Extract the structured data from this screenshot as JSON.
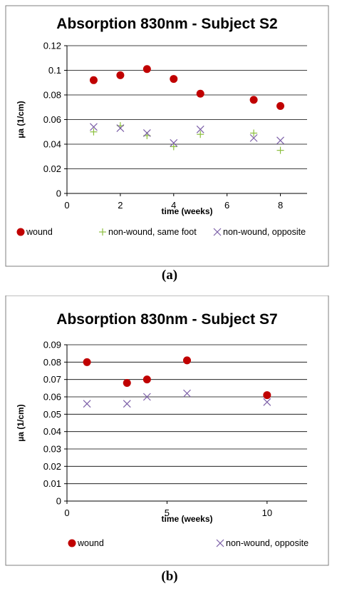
{
  "chart_data": [
    {
      "type": "scatter",
      "title": "Absorption 830nm - Subject S2",
      "xlabel": "time (weeks)",
      "ylabel": "µa (1/cm)",
      "xlim": [
        0,
        9
      ],
      "ylim": [
        0,
        0.12
      ],
      "xticks": [
        "0",
        "2",
        "4",
        "6",
        "8"
      ],
      "yticks": [
        "0",
        "0.02",
        "0.04",
        "0.06",
        "0.08",
        "0.1",
        "0.12"
      ],
      "grid": "horizontal",
      "legend_position": "bottom",
      "caption": "(a)",
      "series": [
        {
          "name": "wound",
          "color": "#c00000",
          "marker": "circle",
          "x": [
            1,
            2,
            3,
            4,
            5,
            7,
            8
          ],
          "y": [
            0.092,
            0.096,
            0.101,
            0.093,
            0.081,
            0.076,
            0.071
          ]
        },
        {
          "name": "non-wound, same foot",
          "color": "#8cbf3f",
          "marker": "plus",
          "x": [
            1,
            2,
            3,
            4,
            5,
            7,
            8
          ],
          "y": [
            0.05,
            0.055,
            0.047,
            0.038,
            0.048,
            0.049,
            0.035
          ]
        },
        {
          "name": "non-wound, opposite",
          "color": "#7b5ea7",
          "marker": "cross",
          "x": [
            1,
            2,
            3,
            4,
            5,
            7,
            8
          ],
          "y": [
            0.054,
            0.053,
            0.049,
            0.041,
            0.052,
            0.045,
            0.043
          ]
        }
      ]
    },
    {
      "type": "scatter",
      "title": "Absorption 830nm - Subject S7",
      "xlabel": "time (weeks)",
      "ylabel": "µa (1/cm)",
      "xlim": [
        0,
        12
      ],
      "ylim": [
        0,
        0.09
      ],
      "xticks": [
        "0",
        "5",
        "10"
      ],
      "yticks": [
        "0",
        "0.01",
        "0.02",
        "0.03",
        "0.04",
        "0.05",
        "0.06",
        "0.07",
        "0.08",
        "0.09"
      ],
      "grid": "horizontal",
      "legend_position": "bottom",
      "caption": "(b)",
      "series": [
        {
          "name": "wound",
          "color": "#c00000",
          "marker": "circle",
          "x": [
            1,
            3,
            4,
            6,
            10
          ],
          "y": [
            0.08,
            0.068,
            0.07,
            0.081,
            0.061
          ]
        },
        {
          "name": "non-wound, opposite",
          "color": "#7b5ea7",
          "marker": "cross",
          "x": [
            1,
            3,
            4,
            6,
            10
          ],
          "y": [
            0.056,
            0.056,
            0.06,
            0.062,
            0.057
          ]
        }
      ]
    }
  ]
}
